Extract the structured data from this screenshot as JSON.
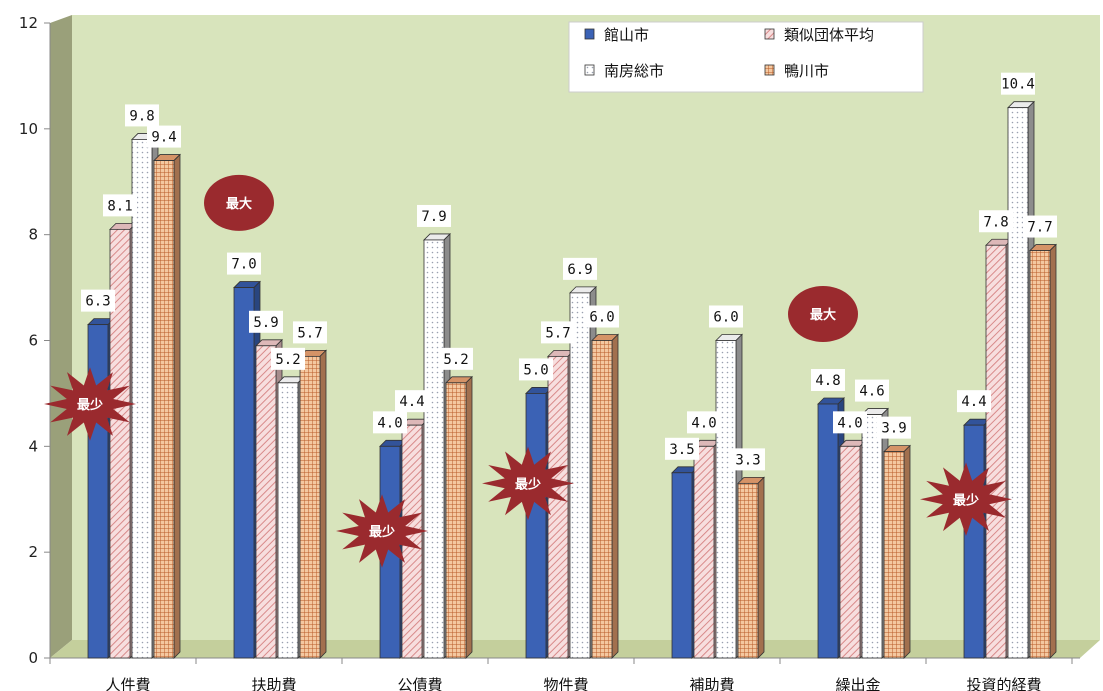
{
  "chart_data": {
    "type": "bar",
    "categories": [
      "人件費",
      "扶助費",
      "公債費",
      "物件費",
      "補助費",
      "繰出金",
      "投資的経費"
    ],
    "ylim": [
      0,
      12
    ],
    "yticks": [
      0,
      2,
      4,
      6,
      8,
      10,
      12
    ],
    "grid": false,
    "legend_position": "top-right",
    "series": [
      {
        "name": "館山市",
        "values": [
          6.3,
          7.0,
          4.0,
          5.0,
          3.5,
          4.8,
          4.4
        ],
        "labels": [
          "6.3",
          "7.0",
          "4.0",
          "5.0",
          "3.5",
          "4.8",
          "4.4"
        ],
        "color": "#3b62b5",
        "pattern": "solid"
      },
      {
        "name": "類似団体平均",
        "values": [
          8.1,
          5.9,
          4.4,
          5.7,
          4.0,
          4.0,
          7.8
        ],
        "labels": [
          "8.1",
          "5.9",
          "4.4",
          "5.7",
          "4.0",
          "4.0",
          "7.8"
        ],
        "color": "#f0c8c8",
        "pattern": "diagonal"
      },
      {
        "name": "南房総市",
        "values": [
          9.8,
          5.2,
          7.9,
          6.9,
          6.0,
          4.6,
          10.4
        ],
        "labels": [
          "9.8",
          "5.2",
          "7.9",
          "6.9",
          "6.0",
          "4.6",
          "10.4"
        ],
        "color": "#ffffff",
        "pattern": "dotted"
      },
      {
        "name": "鴨川市",
        "values": [
          9.4,
          5.7,
          5.2,
          6.0,
          3.3,
          3.9,
          7.7
        ],
        "labels": [
          "9.4",
          "5.7",
          "5.2",
          "6.0",
          "3.3",
          "3.9",
          "7.7"
        ],
        "color": "#e8a070",
        "pattern": "grid"
      }
    ],
    "annotations": [
      {
        "text": "最少",
        "shape": "burst",
        "color": "#9a2a2e",
        "category": 0,
        "value": 4.8
      },
      {
        "text": "最大",
        "shape": "ellipse",
        "color": "#9a2a2e",
        "category": 1,
        "value": 8.6
      },
      {
        "text": "最少",
        "shape": "burst",
        "color": "#9a2a2e",
        "category": 2,
        "value": 2.4
      },
      {
        "text": "最少",
        "shape": "burst",
        "color": "#9a2a2e",
        "category": 3,
        "value": 3.3
      },
      {
        "text": "最大",
        "shape": "ellipse",
        "color": "#9a2a2e",
        "category": 5,
        "value": 6.5
      },
      {
        "text": "最少",
        "shape": "burst",
        "color": "#9a2a2e",
        "category": 6,
        "value": 3.0
      }
    ]
  },
  "colors": {
    "plot_background": "#d8e4bc",
    "plot_wall_shadow": "#9aa07a",
    "plot_floor": "#c4cf9c"
  }
}
